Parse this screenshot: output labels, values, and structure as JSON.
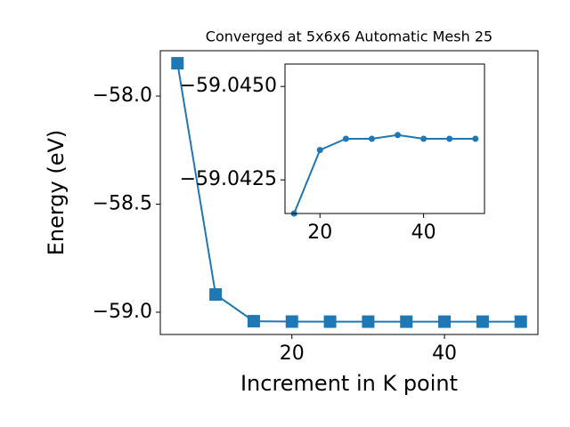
{
  "chart_data": [
    {
      "type": "line",
      "title": "Converged at 5x6x6 Automatic Mesh 25",
      "x_label": "Increment in K point",
      "y_label": "Energy (eV)",
      "marker": "square",
      "series": [
        {
          "color": "#1f77b4",
          "x": [
            5,
            10,
            15,
            20,
            25,
            30,
            35,
            40,
            45,
            50
          ],
          "values": [
            -57.848,
            -58.918,
            -59.0416,
            -59.0433,
            -59.0436,
            -59.0436,
            -59.0437,
            -59.0436,
            -59.0436,
            -59.0436
          ]
        }
      ],
      "xlim": [
        2.75,
        52.25
      ],
      "xticks": [
        20,
        40
      ],
      "ylim": [
        -59.103,
        -57.79
      ],
      "yticks": [
        {
          "value": -59.0,
          "label": "−59.0"
        },
        {
          "value": -58.5,
          "label": "−58.5"
        },
        {
          "value": -58.0,
          "label": "−58.0"
        }
      ]
    },
    {
      "type": "line",
      "marker": "circle",
      "series": [
        {
          "color": "#1f77b4",
          "x": [
            15,
            20,
            25,
            30,
            35,
            40,
            45,
            50
          ],
          "values": [
            -59.0416,
            -59.0433,
            -59.0436,
            -59.0436,
            -59.0437,
            -59.0436,
            -59.0436,
            -59.0436
          ]
        }
      ],
      "xlim": [
        13.25,
        51.75
      ],
      "xticks": [
        20,
        40
      ],
      "ylim": [
        -59.0416,
        -59.0456
      ],
      "yticks": [
        {
          "value": -59.0425,
          "label": "−59.0425"
        },
        {
          "value": -59.045,
          "label": "−59.0450"
        }
      ]
    }
  ]
}
